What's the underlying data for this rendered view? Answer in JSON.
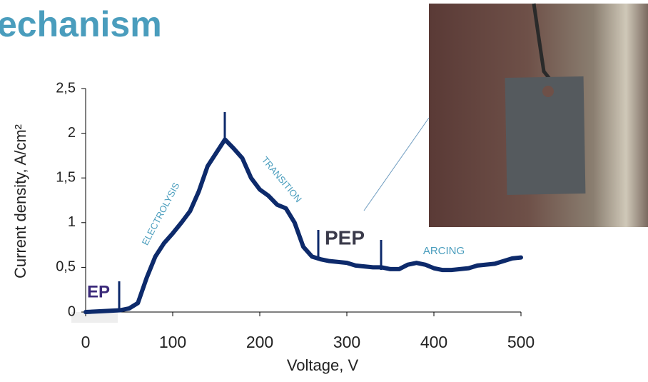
{
  "title": "echanism",
  "chart_data": {
    "type": "line",
    "xlabel": "Voltage, V",
    "ylabel": "Current density, A/cm²",
    "x": [
      0,
      20,
      40,
      50,
      60,
      70,
      80,
      90,
      100,
      110,
      120,
      130,
      140,
      150,
      160,
      170,
      180,
      190,
      200,
      210,
      220,
      230,
      240,
      250,
      260,
      270,
      280,
      290,
      300,
      310,
      320,
      330,
      340,
      350,
      360,
      370,
      380,
      390,
      400,
      410,
      420,
      430,
      440,
      450,
      460,
      470,
      480,
      490,
      500
    ],
    "values": [
      0,
      0.01,
      0.02,
      0.04,
      0.1,
      0.38,
      0.62,
      0.77,
      0.88,
      1.0,
      1.13,
      1.35,
      1.63,
      1.78,
      1.93,
      1.83,
      1.72,
      1.5,
      1.37,
      1.3,
      1.2,
      1.16,
      1.0,
      0.73,
      0.62,
      0.59,
      0.57,
      0.56,
      0.55,
      0.52,
      0.51,
      0.5,
      0.5,
      0.48,
      0.48,
      0.53,
      0.55,
      0.53,
      0.49,
      0.47,
      0.47,
      0.48,
      0.49,
      0.52,
      0.53,
      0.54,
      0.57,
      0.6,
      0.61
    ],
    "color": "#0d2a6b",
    "xlim": [
      0,
      500
    ],
    "xticks": [
      0,
      100,
      200,
      300,
      400,
      500
    ],
    "ylim": [
      0,
      2.5
    ],
    "yticks": [
      0,
      {
        "value": 0.5,
        "label": "0,5"
      },
      1,
      {
        "value": 1.5,
        "label": "1,5"
      },
      2,
      {
        "value": 2.5,
        "label": "2,5"
      }
    ],
    "annotations": [
      "EP",
      "PEP",
      "ELECTROLYSIS",
      "TRANSITION",
      "ARCING"
    ]
  }
}
